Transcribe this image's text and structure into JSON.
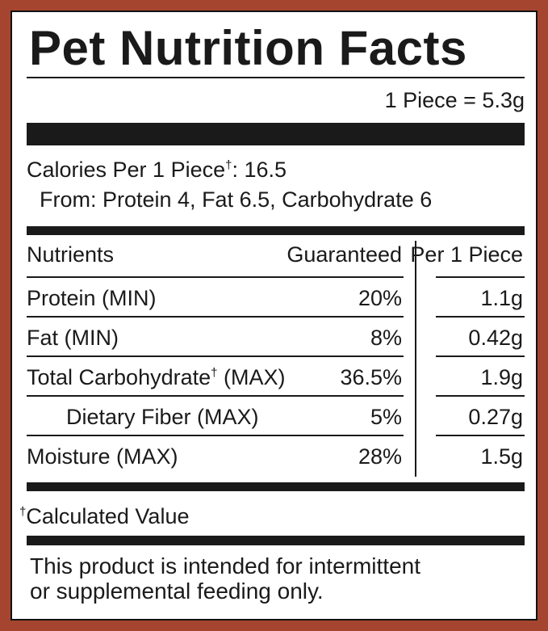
{
  "header": {
    "title": "Pet Nutrition Facts",
    "serving": "1 Piece = 5.3g"
  },
  "calories": {
    "label": "Calories Per 1 Piece",
    "dagger": "†",
    "value": ": 16.5",
    "from": "From: Protein 4, Fat 6.5, Carbohydrate 6"
  },
  "table": {
    "headers": [
      "Nutrients",
      "Guaranteed",
      "Per 1 Piece"
    ],
    "rows": [
      {
        "name": "Protein (MIN)",
        "guaranteed": "20%",
        "per_piece": "1.1g"
      },
      {
        "name": "Fat (MIN)",
        "guaranteed": "8%",
        "per_piece": "0.42g"
      },
      {
        "name": "Total Carbohydrate",
        "dagger": "†",
        "qualifier": " (MAX)",
        "guaranteed": "36.5%",
        "per_piece": "1.9g"
      },
      {
        "name": "Dietary Fiber (MAX)",
        "guaranteed": "5%",
        "per_piece": "0.27g"
      },
      {
        "name": "Moisture (MAX)",
        "guaranteed": "28%",
        "per_piece": "1.5g"
      }
    ]
  },
  "footnote": {
    "dagger": "†",
    "text": "Calculated Value"
  },
  "disclaimer": [
    "This product is intended for intermittent",
    "or supplemental feeding only."
  ]
}
